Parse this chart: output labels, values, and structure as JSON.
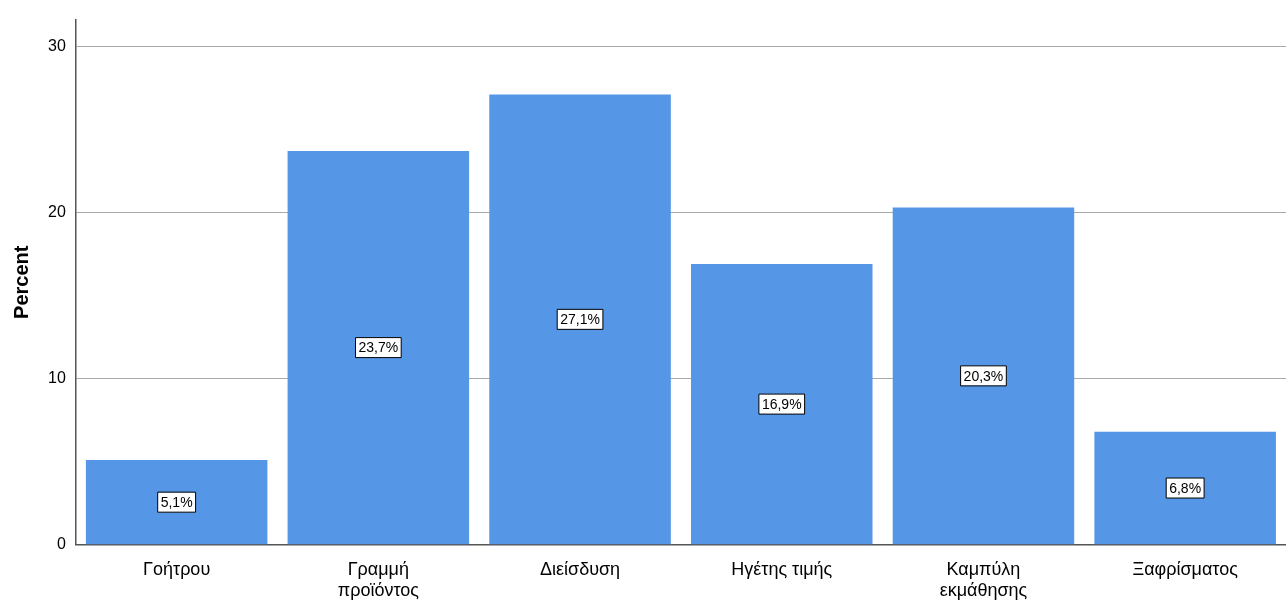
{
  "chart_data": {
    "type": "bar",
    "ylabel": "Percent",
    "categories": [
      "Γοήτρου",
      "Γραμμή προϊόντος",
      "Διείσδυση",
      "Ηγέτης τιμής",
      "Καμπύλη εκμάθησης",
      "Ξαφρίσματος"
    ],
    "values": [
      5.1,
      23.7,
      27.1,
      16.9,
      20.3,
      6.8
    ],
    "value_labels": [
      "5,1%",
      "23,7%",
      "27,1%",
      "16,9%",
      "20,3%",
      "6,8%"
    ],
    "color": "#5596e6",
    "ylim": [
      0,
      31.6
    ],
    "yticks": [
      0,
      10,
      20,
      30
    ],
    "grid": "y"
  }
}
